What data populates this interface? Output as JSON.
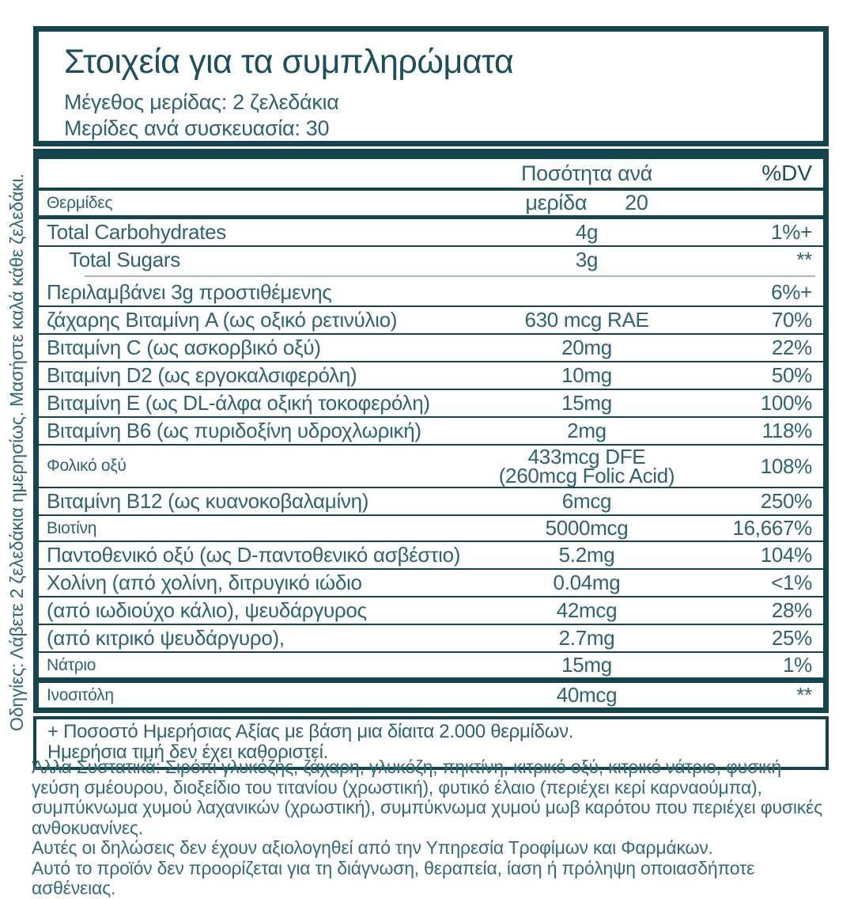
{
  "label": {
    "title": "Στοιχεία για τα συμπληρώματα",
    "serving_size": "Μέγεθος μερίδας: 2 ζελεδάκια",
    "servings_per_container": "Μερίδες ανά συσκευασία: 30"
  },
  "table": {
    "amount_header": "Ποσότητα ανά",
    "amount_header_line2": "μερίδα",
    "dv_header": "%DV",
    "rows": [
      {
        "name": "Θερμίδες",
        "amount_prefix": "μερίδα",
        "amount": "20",
        "dv": "",
        "cls": "calories sm",
        "sep": "medium"
      },
      {
        "name": "Total Carbohydrates",
        "amount": "4g",
        "dv": "1%+",
        "cls": "",
        "sep": "medium2"
      },
      {
        "name": "Total Sugars",
        "amount": "3g",
        "dv": "**",
        "cls": "",
        "indent": true,
        "sep": "thin"
      },
      {
        "name": "Περιλαμβάνει 3g προστιθέμενης",
        "amount": "",
        "dv": "6%+",
        "cls": "",
        "sep": "partial"
      },
      {
        "name": "ζάχαρης Βιταμίνη A (ως οξικό ρετινύλιο)",
        "amount": "630 mcg RAE",
        "dv": "70%",
        "cls": "",
        "sep": "thin"
      },
      {
        "name": "Βιταμίνη C (ως ασκορβικό οξύ)",
        "amount": "20mg",
        "dv": "22%",
        "cls": "",
        "sep": "thin"
      },
      {
        "name": "Βιταμίνη D2 (ως εργοκαλσιφερόλη)",
        "amount": "10mg",
        "dv": "50%",
        "cls": "",
        "sep": "thin"
      },
      {
        "name": "Βιταμίνη E (ως DL-άλφα οξική τοκοφερόλη)",
        "amount": "15mg",
        "dv": "100%",
        "cls": "",
        "sep": "thin"
      },
      {
        "name": "Βιταμίνη B6 (ως πυριδοξίνη υδροχλωρική)",
        "amount": "2mg",
        "dv": "118%",
        "cls": "",
        "sep": "thin"
      },
      {
        "name": "Φολικό οξύ",
        "amount": "433mcg DFE",
        "amount2": "(260mcg Folic Acid)",
        "dv": "108%",
        "cls": "sm",
        "sep": "thin"
      },
      {
        "name": "Βιταμίνη B12 (ως κυανοκοβαλαμίνη)",
        "amount": "6mcg",
        "dv": "250%",
        "cls": "",
        "sep": "thin"
      },
      {
        "name": "Βιοτίνη",
        "amount": "5000mcg",
        "dv": "16,667%",
        "cls": "sm",
        "sep": "thin"
      },
      {
        "name": "Παντοθενικό οξύ (ως D-παντοθενικό ασβέστιο)",
        "amount": "5.2mg",
        "dv": "104%",
        "cls": "",
        "sep": "thin"
      },
      {
        "name": "Χολίνη (από χολίνη, διτρυγικό ιώδιο",
        "amount": "0.04mg",
        "dv": "<1%",
        "cls": "",
        "sep": "thin"
      },
      {
        "name": "(από ιωδιούχο κάλιο), ψευδάργυρος",
        "amount": "42mcg",
        "dv": "28%",
        "cls": "",
        "sep": "thin"
      },
      {
        "name": "(από κιτρικό ψευδάργυρο),",
        "amount": "2.7mg",
        "dv": "25%",
        "cls": "",
        "sep": "thin"
      },
      {
        "name": "Νάτριο",
        "amount": "15mg",
        "dv": "1%",
        "cls": "sm",
        "sep": "thin"
      },
      {
        "name": "Ινοσιτόλη",
        "amount": "40mcg",
        "dv": "**",
        "cls": "sm",
        "sep": "thick"
      }
    ]
  },
  "footnote": {
    "line1": "+ Ποσοστό Ημερήσιας Αξίας με βάση μια δίαιτα 2.000 θερμίδων.",
    "line2": "Ημερήσια τιμή δεν έχει καθοριστεί."
  },
  "other_ingredients": "Άλλα Συστατικά: Σιρόπι γλυκόζης, ζάχαρη, γλυκόζη, πηκτίνη, κιτρικό οξύ, κιτρικό νάτριο, φυσική γεύση σμέουρου, διοξείδιο του τιτανίου (χρωστική), φυτικό έλαιο (περιέχει κερί καρναούμπα), συμπύκνωμα χυμού λαχανικών (χρωστική), συμπύκνωμα χυμού μωβ καρότου που περιέχει φυσικές ανθοκυανίνες.",
  "disclaimers": [
    "Αυτές οι δηλώσεις δεν έχουν αξιολογηθεί από την Υπηρεσία Τροφίμων και Φαρμάκων.",
    "Αυτό το προϊόν δεν προορίζεται για τη διάγνωση, θεραπεία, ίαση ή πρόληψη οποιασδήποτε ασθένειας."
  ],
  "directions_vertical": "Οδηγίες: Λάβετε 2 ζελεδάκια ημερησίως. Μασήστε καλά κάθε ζελεδάκι.",
  "colors": {
    "border_teal": "#14454f",
    "title_teal": "#1b4f5e",
    "text_teal": "#2d6372",
    "footer_teal": "#336b7a",
    "background": "#ffffff"
  }
}
